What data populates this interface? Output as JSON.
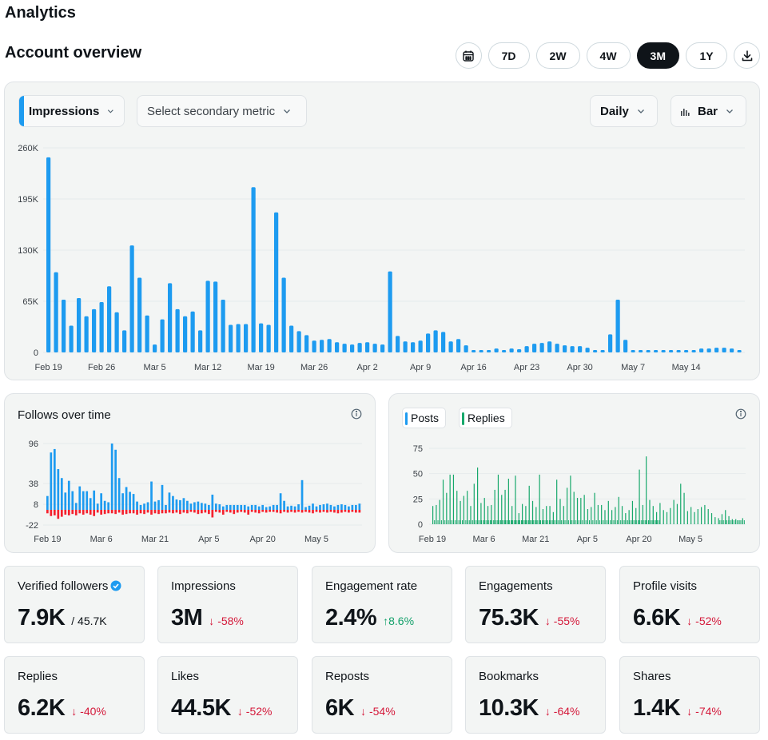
{
  "page": {
    "title": "Analytics"
  },
  "overview": {
    "title": "Account overview"
  },
  "ranges": [
    "7D",
    "2W",
    "4W",
    "3M",
    "1Y"
  ],
  "active_range": "3M",
  "icons": {
    "calendar": "calendar-icon",
    "download": "download-icon",
    "info": "info-icon",
    "chevron": "chevron-down-icon",
    "bar": "bar-chart-icon",
    "verified": "verified-badge-icon"
  },
  "colors": {
    "impressions": "#1d9bf0",
    "unfollows": "#f4212e",
    "replies": "#17a86b",
    "active": "#0f1419"
  },
  "controls": {
    "primary_metric": "Impressions",
    "secondary_metric": "Select secondary metric",
    "granularity": "Daily",
    "chart_type": "Bar"
  },
  "follows": {
    "title": "Follows over time"
  },
  "posts_legend": {
    "posts": "Posts",
    "replies": "Replies"
  },
  "chart_data": [
    {
      "type": "bar",
      "name": "impressions",
      "y_ticks": [
        "260K",
        "195K",
        "130K",
        "65K",
        "0"
      ],
      "ylim": [
        0,
        260000
      ],
      "x_tick_labels": [
        "Feb 19",
        "Feb 26",
        "Mar 5",
        "Mar 12",
        "Mar 19",
        "Mar 26",
        "Apr 2",
        "Apr 9",
        "Apr 16",
        "Apr 23",
        "Apr 30",
        "May 7",
        "May 14"
      ],
      "values": [
        248000,
        102000,
        67000,
        34000,
        69000,
        46000,
        55000,
        64000,
        84000,
        51000,
        28000,
        136000,
        95000,
        47000,
        10000,
        42000,
        88000,
        55000,
        46000,
        52000,
        28000,
        91000,
        90000,
        67000,
        35000,
        36000,
        36000,
        210000,
        37000,
        35000,
        178000,
        95000,
        34000,
        27000,
        22000,
        15000,
        16000,
        17000,
        13000,
        11000,
        10000,
        12000,
        13000,
        11000,
        10000,
        103000,
        21000,
        14000,
        13000,
        15000,
        24000,
        28000,
        26000,
        14000,
        17000,
        9000,
        3000,
        3000,
        3000,
        5000,
        3000,
        5000,
        4000,
        8000,
        11000,
        12000,
        14000,
        11000,
        9000,
        8000,
        8000,
        6000,
        3000,
        3000,
        23000,
        67000,
        16000,
        3000,
        3000,
        3000,
        3000,
        3000,
        3000,
        3000,
        3000,
        3000,
        5000,
        5000,
        6000,
        6000,
        5000,
        3000
      ]
    },
    {
      "type": "bar",
      "name": "follows",
      "y_ticks": [
        "96",
        "38",
        "8",
        "-22"
      ],
      "ylim": [
        -22,
        96
      ],
      "x_tick_labels": [
        "Feb 19",
        "Mar 6",
        "Mar 21",
        "Apr 5",
        "Apr 20",
        "May 5"
      ],
      "follows": [
        20,
        83,
        88,
        59,
        46,
        25,
        42,
        27,
        10,
        34,
        27,
        27,
        17,
        28,
        9,
        24,
        13,
        11,
        96,
        87,
        46,
        24,
        33,
        26,
        23,
        12,
        7,
        9,
        11,
        41,
        12,
        14,
        36,
        7,
        25,
        20,
        15,
        14,
        17,
        13,
        9,
        11,
        12,
        10,
        9,
        7,
        22,
        9,
        8,
        5,
        7,
        7,
        7,
        7,
        7,
        7,
        5,
        7,
        7,
        5,
        7,
        4,
        5,
        7,
        7,
        24,
        13,
        5,
        6,
        5,
        8,
        43,
        4,
        6,
        9,
        5,
        7,
        8,
        9,
        7,
        5,
        7,
        8,
        7,
        5,
        7,
        7,
        9
      ],
      "unfollows": [
        -5,
        -9,
        -8,
        -13,
        -10,
        -7,
        -8,
        -6,
        -8,
        -5,
        -7,
        -5,
        -7,
        -9,
        -4,
        -7,
        -6,
        -5,
        -5,
        -6,
        -4,
        -7,
        -6,
        -5,
        -5,
        -7,
        -5,
        -6,
        -4,
        -7,
        -5,
        -6,
        -5,
        -5,
        -4,
        -5,
        -4,
        -6,
        -4,
        -5,
        -3,
        -4,
        -6,
        -5,
        -4,
        -6,
        -11,
        -3,
        -4,
        -7,
        -3,
        -4,
        -6,
        -4,
        -3,
        -4,
        -7,
        -3,
        -4,
        -5,
        -3,
        -4,
        -3,
        -3,
        -4,
        -5,
        -3,
        -4,
        -3,
        -4,
        -3,
        -4,
        -3,
        -4,
        -5,
        -3,
        -4,
        -3,
        -4,
        -3,
        -4,
        -5,
        -4,
        -3,
        -4,
        -3,
        -4,
        -4
      ]
    },
    {
      "type": "bar",
      "name": "posts",
      "y_ticks": [
        "75",
        "50",
        "25",
        "0"
      ],
      "ylim": [
        0,
        75
      ],
      "x_tick_labels": [
        "Feb 19",
        "Mar 6",
        "Mar 21",
        "Apr 5",
        "Apr 20",
        "May 5"
      ],
      "series": [
        {
          "name": "Posts",
          "values": []
        },
        {
          "name": "Replies",
          "values": [
            18,
            19,
            24,
            44,
            31,
            49,
            49,
            33,
            23,
            28,
            33,
            18,
            40,
            56,
            21,
            26,
            18,
            19,
            34,
            49,
            29,
            34,
            45,
            18,
            48,
            11,
            20,
            18,
            38,
            23,
            17,
            49,
            15,
            18,
            18,
            12,
            44,
            25,
            18,
            36,
            48,
            32,
            26,
            26,
            29,
            15,
            17,
            31,
            19,
            19,
            14,
            23,
            14,
            17,
            27,
            18,
            11,
            14,
            23,
            16,
            54,
            19,
            67,
            24,
            18,
            12,
            21,
            14,
            12,
            16,
            24,
            20,
            40,
            31,
            13,
            17,
            12,
            15,
            17,
            19,
            15,
            11,
            7,
            6,
            10,
            14,
            8,
            5,
            5,
            4,
            6
          ]
        }
      ]
    }
  ],
  "stats": [
    {
      "label": "Verified followers",
      "value": "7.9K",
      "extra": "/ 45.7K"
    },
    {
      "label": "Impressions",
      "value": "3M",
      "delta": "-58%",
      "dir": "down"
    },
    {
      "label": "Engagement rate",
      "value": "2.4%",
      "delta": "8.6%",
      "dir": "up"
    },
    {
      "label": "Engagements",
      "value": "75.3K",
      "delta": "-55%",
      "dir": "down"
    },
    {
      "label": "Profile visits",
      "value": "6.6K",
      "delta": "-52%",
      "dir": "down"
    },
    {
      "label": "Replies",
      "value": "6.2K",
      "delta": "-40%",
      "dir": "down"
    },
    {
      "label": "Likes",
      "value": "44.5K",
      "delta": "-52%",
      "dir": "down"
    },
    {
      "label": "Reposts",
      "value": "6K",
      "delta": "-54%",
      "dir": "down"
    },
    {
      "label": "Bookmarks",
      "value": "10.3K",
      "delta": "-64%",
      "dir": "down"
    },
    {
      "label": "Shares",
      "value": "1.4K",
      "delta": "-74%",
      "dir": "down"
    }
  ]
}
